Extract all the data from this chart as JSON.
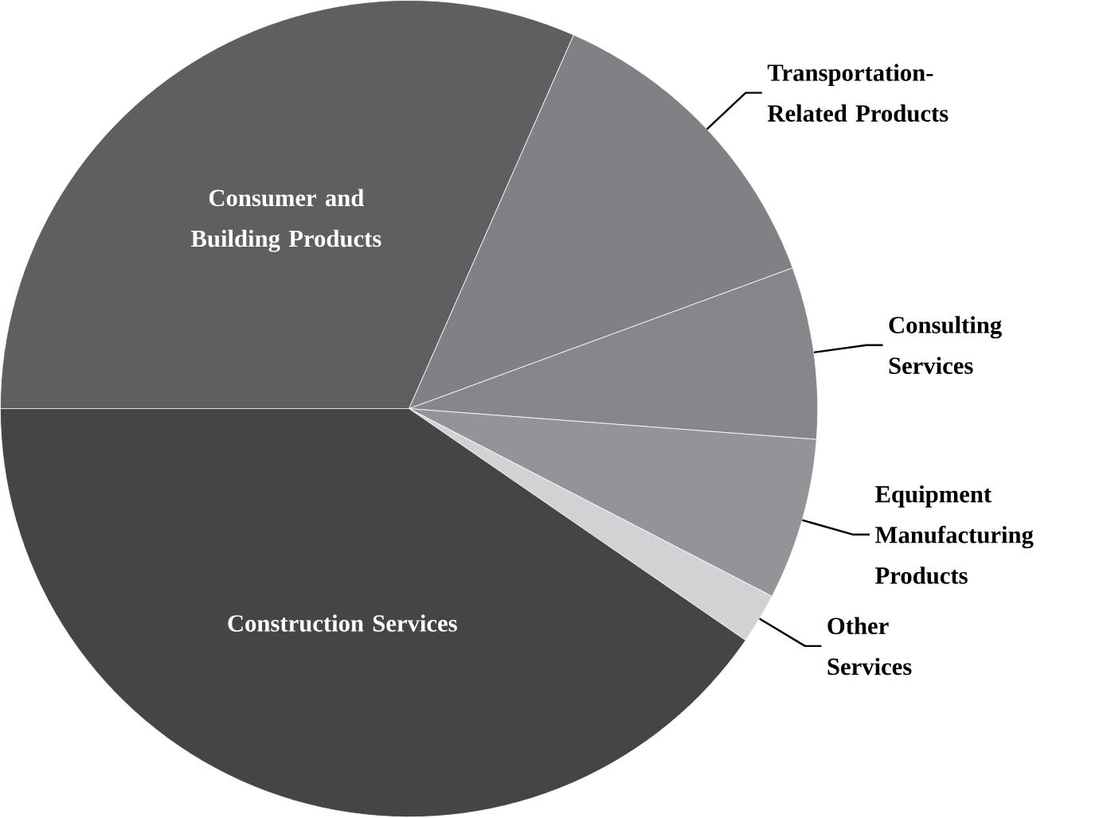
{
  "chart_data": {
    "type": "pie",
    "categories": [
      "Consumer and Building Products",
      "Transportation-Related Products",
      "Consulting Services",
      "Equipment Manufacturing Products",
      "Other Services",
      "Construction Services"
    ],
    "values": [
      31.6,
      12.8,
      6.8,
      6.4,
      2.0,
      40.4
    ],
    "colors": [
      "#5f5f61",
      "#808184",
      "#86878a",
      "#939497",
      "#d1d2d4",
      "#454547"
    ]
  }
}
